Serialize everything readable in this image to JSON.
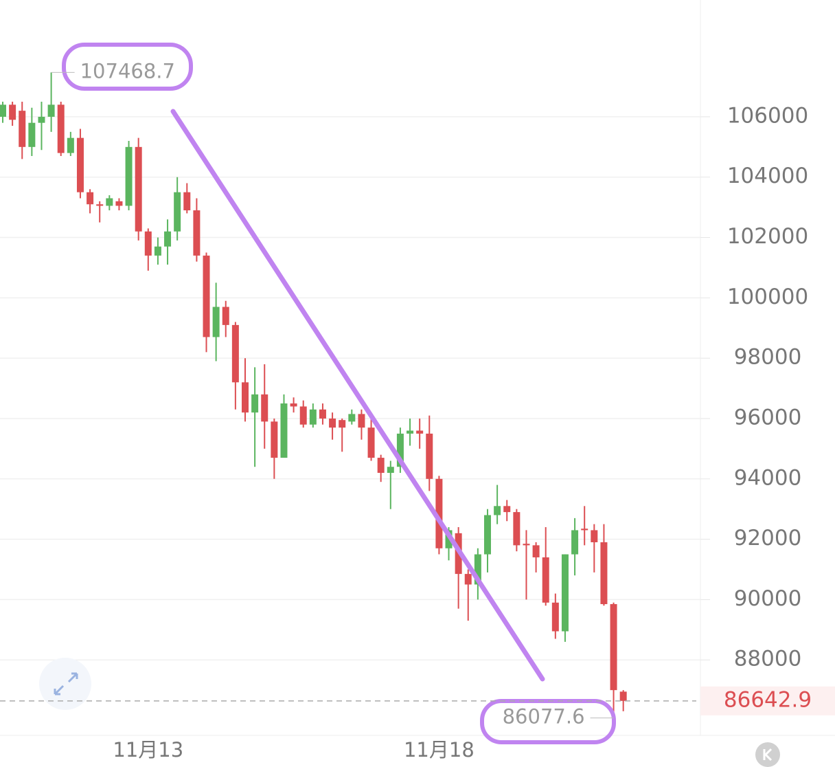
{
  "chart_data": {
    "type": "candlestick",
    "categories": [
      null,
      null,
      null,
      null,
      null,
      null,
      null,
      null,
      null,
      null,
      null,
      null,
      null,
      null,
      null,
      "11月13",
      null,
      null,
      null,
      null,
      null,
      null,
      null,
      null,
      null,
      null,
      null,
      null,
      null,
      null,
      null,
      null,
      null,
      null,
      null,
      null,
      null,
      null,
      null,
      null,
      null,
      null,
      null,
      null,
      null,
      "11月18",
      null,
      null,
      null,
      null,
      null,
      null,
      null,
      null,
      null,
      null,
      null,
      null,
      null,
      null,
      null,
      null,
      null,
      null,
      null
    ],
    "open": [
      106000,
      106400,
      106200,
      105000,
      105800,
      106000,
      106400,
      104800,
      105300,
      103500,
      103100,
      103050,
      103200,
      103050,
      105000,
      102200,
      101400,
      101700,
      102200,
      103500,
      102900,
      101400,
      98700,
      99700,
      99100,
      97200,
      96200,
      96800,
      95900,
      94700,
      96500,
      96400,
      95800,
      96300,
      96000,
      95950,
      95900,
      96150,
      95700,
      94700,
      94200,
      94400,
      95500,
      95600,
      95500,
      94000,
      91700,
      92200,
      90850,
      90500,
      91500,
      92800,
      93100,
      92900,
      91850,
      91800,
      91400,
      89900,
      88950,
      91500,
      92350,
      92300,
      91900,
      89850,
      86950
    ],
    "high": [
      106500,
      106500,
      106500,
      106300,
      106500,
      107468.7,
      106500,
      105500,
      105600,
      103600,
      103200,
      103400,
      103300,
      105200,
      105300,
      102300,
      102000,
      102600,
      104000,
      103800,
      103300,
      101500,
      100500,
      99900,
      99200,
      98000,
      97700,
      97800,
      96000,
      96800,
      96700,
      96600,
      96500,
      96500,
      96200,
      96000,
      96300,
      96300,
      96200,
      94800,
      94600,
      95700,
      96000,
      96000,
      96100,
      94100,
      92400,
      92400,
      91000,
      91700,
      93000,
      93800,
      93300,
      93000,
      92300,
      91900,
      92400,
      90200,
      91500,
      92700,
      93100,
      92500,
      92500,
      89900,
      87000
    ],
    "low": [
      105800,
      105700,
      104600,
      104700,
      104900,
      105500,
      104700,
      104700,
      103300,
      102800,
      102500,
      102900,
      102900,
      102900,
      101900,
      100900,
      101100,
      101100,
      101900,
      102800,
      101200,
      98200,
      97900,
      98700,
      96300,
      95900,
      94400,
      95000,
      94000,
      94700,
      96200,
      95700,
      95700,
      95800,
      95300,
      94900,
      95800,
      95300,
      94600,
      93900,
      93000,
      94200,
      95100,
      95000,
      93600,
      91500,
      91300,
      89700,
      89300,
      90000,
      90900,
      92500,
      92600,
      91600,
      90000,
      90900,
      89800,
      88700,
      88600,
      90800,
      91800,
      90900,
      89800,
      86077.6,
      86300
    ],
    "close": [
      106400,
      105900,
      105000,
      105800,
      106000,
      106400,
      104800,
      105300,
      103500,
      103100,
      103050,
      103300,
      103050,
      105000,
      102200,
      101400,
      101700,
      102200,
      103500,
      102900,
      101400,
      98700,
      99700,
      99100,
      97200,
      96200,
      96800,
      95900,
      94700,
      96500,
      96400,
      95800,
      96300,
      96000,
      95700,
      95700,
      96150,
      95700,
      94700,
      94200,
      94400,
      95500,
      95600,
      95500,
      94000,
      91700,
      92300,
      90850,
      90500,
      91500,
      92800,
      93100,
      92900,
      91800,
      91800,
      91400,
      89900,
      88950,
      91500,
      92300,
      92300,
      91900,
      89850,
      87000,
      86642.9
    ],
    "up_color": "#5bb55f",
    "down_color": "#dc4e52",
    "ylim": [
      85500,
      109870
    ],
    "yticks": [
      88000,
      90000,
      92000,
      94000,
      96000,
      98000,
      100000,
      102000,
      104000,
      106000
    ],
    "grid": true,
    "max_label": "107468.7",
    "min_label": "86077.6",
    "last_label": "86642.9"
  }
}
